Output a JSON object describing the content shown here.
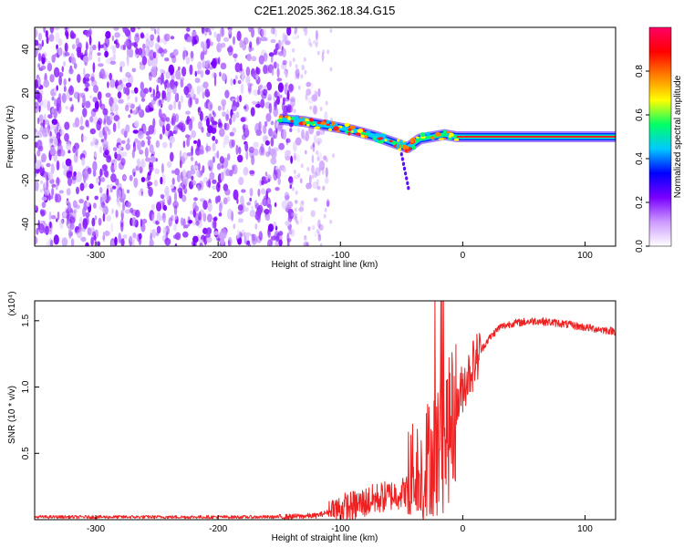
{
  "title": "C2E1.2025.362.18.34.G15",
  "chart_data": [
    {
      "type": "heatmap",
      "xlabel": "Height of straight line (km)",
      "ylabel": "Frequency (Hz)",
      "xlim": [
        -350,
        125
      ],
      "ylim": [
        -50,
        50
      ],
      "x_ticks": [
        -300,
        -200,
        -100,
        0,
        100
      ],
      "y_ticks": [
        -40,
        -20,
        0,
        20,
        40
      ],
      "colorbar": {
        "label": "Normalized spectral amplitude",
        "range": [
          0,
          1
        ],
        "ticks": [
          "0.0",
          "0.2",
          "0.4",
          "0.6",
          "0.8"
        ],
        "colors": [
          "#ffffff",
          "#cc99ff",
          "#7a00ff",
          "#0000ff",
          "#00c8ff",
          "#00ff66",
          "#ffff00",
          "#ff8000",
          "#ff0000",
          "#ff0066"
        ]
      },
      "noise_region": {
        "x": [
          -350,
          -110
        ],
        "y": [
          -50,
          50
        ]
      },
      "ridge": {
        "x": [
          -150,
          -130,
          -110,
          -90,
          -70,
          -55,
          -45,
          -35,
          -25,
          -15,
          -5,
          0,
          50,
          100,
          125
        ],
        "y": [
          8,
          7,
          5,
          3,
          0,
          -3,
          -5,
          -1,
          0,
          1,
          0,
          0,
          0,
          0,
          0
        ]
      }
    },
    {
      "type": "line",
      "xlabel": "Height of straight line (km)",
      "ylabel": "SNR (10 * v/v)",
      "y_multiplier": "(x10⁴)",
      "xlim": [
        -350,
        125
      ],
      "ylim": [
        0,
        1.65
      ],
      "x_ticks": [
        -300,
        -200,
        -100,
        0,
        100
      ],
      "y_ticks": [
        0.5,
        1.0,
        1.5
      ],
      "series": [
        {
          "color": "#ee2222",
          "x": [
            -350,
            -150,
            -120,
            -100,
            -90,
            -80,
            -70,
            -60,
            -50,
            -40,
            -30,
            -25,
            -20,
            -15,
            -10,
            -5,
            0,
            10,
            20,
            30,
            40,
            60,
            80,
            100,
            125
          ],
          "y": [
            0.02,
            0.02,
            0.03,
            0.08,
            0.1,
            0.13,
            0.16,
            0.18,
            0.2,
            0.25,
            0.35,
            0.45,
            0.55,
            0.6,
            0.7,
            0.85,
            1.0,
            1.2,
            1.35,
            1.45,
            1.48,
            1.5,
            1.48,
            1.45,
            1.42
          ]
        }
      ]
    }
  ]
}
